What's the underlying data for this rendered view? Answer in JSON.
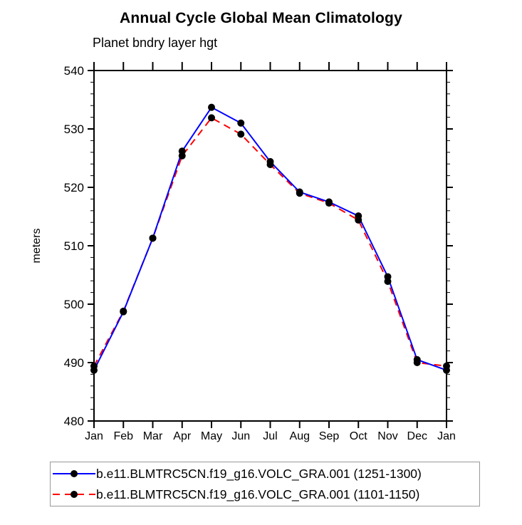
{
  "chart_data": {
    "type": "line",
    "title": "Annual Cycle Global Mean Climatology",
    "subtitle": "Planet bndry layer hgt",
    "ylabel": "meters",
    "xlabel": "",
    "categories": [
      "Jan",
      "Feb",
      "Mar",
      "Apr",
      "May",
      "Jun",
      "Jul",
      "Aug",
      "Sep",
      "Oct",
      "Nov",
      "Dec",
      "Jan"
    ],
    "ylim": [
      480,
      540
    ],
    "y_major_tick_step": 10,
    "y_minor_tick_step": 2,
    "grid": "off",
    "legend_position": "bottom",
    "axis_color": "#000000",
    "series": [
      {
        "name": "b.e11.BLMTRC5CN.f19_g16.VOLC_GRA.001 (1251-1300)",
        "color": "#0000ff",
        "style": "solid",
        "marker": "circle",
        "marker_color": "#000000",
        "values": [
          488.7,
          498.7,
          511.3,
          526.2,
          533.7,
          531.0,
          524.4,
          519.2,
          517.5,
          515.1,
          504.7,
          490.5,
          488.7
        ]
      },
      {
        "name": "b.e11.BLMTRC5CN.f19_g16.VOLC_GRA.001 (1101-1150)",
        "color": "#ff0000",
        "style": "dashed",
        "marker": "circle",
        "marker_color": "#000000",
        "values": [
          489.4,
          498.8,
          511.3,
          525.4,
          531.9,
          529.1,
          523.9,
          519.0,
          517.3,
          514.4,
          503.9,
          490.0,
          489.4
        ]
      }
    ]
  }
}
